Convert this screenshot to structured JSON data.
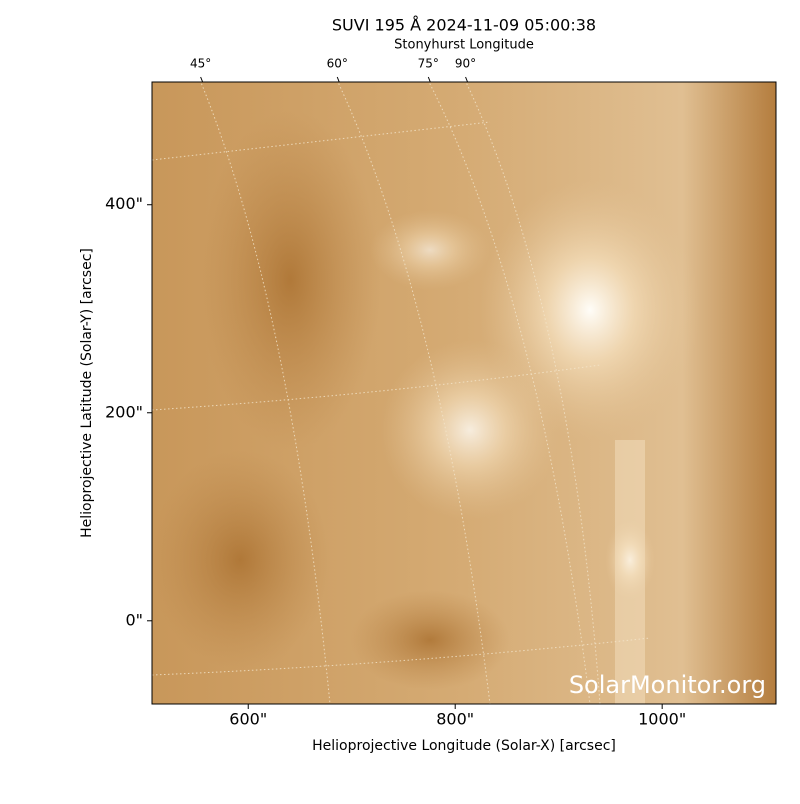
{
  "chart_data": {
    "type": "image",
    "title": "SUVI 195 Å 2024-11-09 05:00:38",
    "top_axis_label": "Stonyhurst Longitude",
    "xlabel": "Helioprojective Longitude (Solar-X) [arcsec]",
    "ylabel": "Helioprojective Latitude (Solar-Y) [arcsec]",
    "watermark": "SolarMonitor.org",
    "xlim": [
      507,
      1110
    ],
    "ylim": [
      -80,
      518
    ],
    "xticks": [
      {
        "value": 600,
        "label": "600\""
      },
      {
        "value": 800,
        "label": "800\""
      },
      {
        "value": 1000,
        "label": "1000\""
      }
    ],
    "yticks": [
      {
        "value": 0,
        "label": "0\""
      },
      {
        "value": 200,
        "label": "200\""
      },
      {
        "value": 400,
        "label": "400\""
      }
    ],
    "top_ticks": [
      {
        "value": 45,
        "label": "45°",
        "x": 554
      },
      {
        "value": 60,
        "label": "60°",
        "x": 686
      },
      {
        "value": 75,
        "label": "75°",
        "x": 774
      },
      {
        "value": 90,
        "label": "90°",
        "x": 810
      }
    ]
  }
}
